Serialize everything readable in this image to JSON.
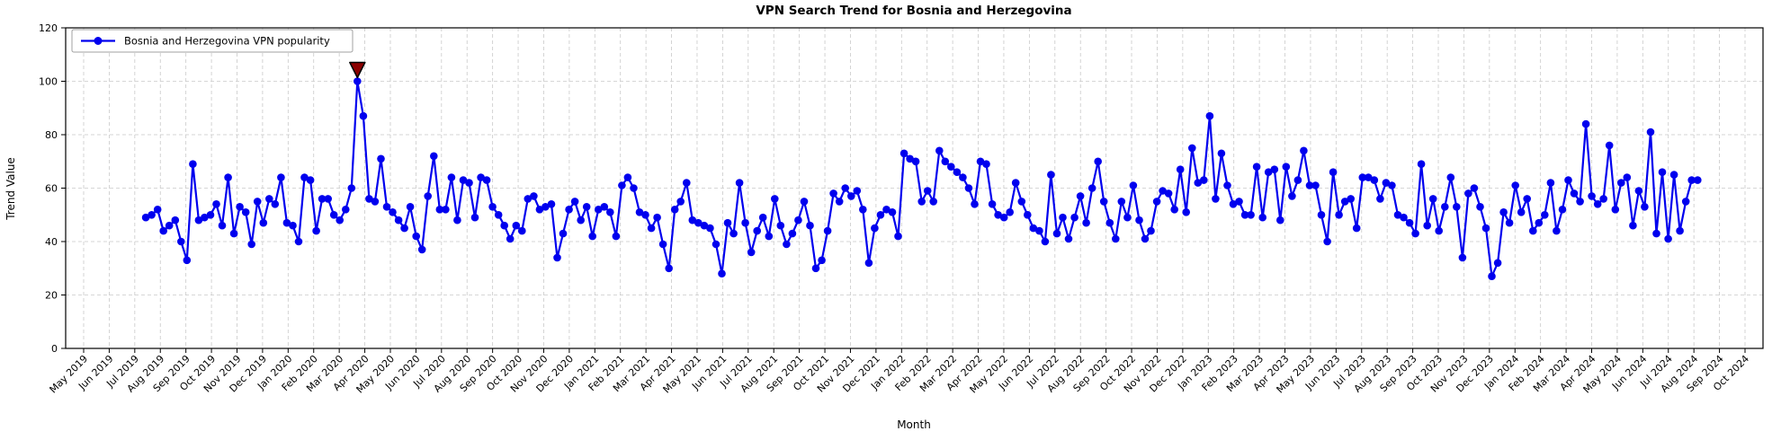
{
  "title": "VPN Search Trend for Bosnia and Herzegovina",
  "xlabel": "Month",
  "ylabel": "Trend Value",
  "legend": {
    "label": "Bosnia and Herzegovina VPN popularity"
  },
  "chart_data": {
    "type": "line",
    "title": "VPN Search Trend for Bosnia and Herzegovina",
    "xlabel": "Month",
    "ylabel": "Trend Value",
    "ylim": [
      0,
      120
    ],
    "yticks": [
      0,
      20,
      40,
      60,
      80,
      100,
      120
    ],
    "grid": "dashed both axes",
    "legend_position": "upper left",
    "x_tick_labels": [
      "May 2019",
      "Jun 2019",
      "Jul 2019",
      "Aug 2019",
      "Sep 2019",
      "Oct 2019",
      "Nov 2019",
      "Dec 2019",
      "Jan 2020",
      "Feb 2020",
      "Mar 2020",
      "Apr 2020",
      "May 2020",
      "Jun 2020",
      "Jul 2020",
      "Aug 2020",
      "Sep 2020",
      "Oct 2020",
      "Nov 2020",
      "Dec 2020",
      "Jan 2021",
      "Feb 2021",
      "Mar 2021",
      "Apr 2021",
      "May 2021",
      "Jun 2021",
      "Jul 2021",
      "Aug 2021",
      "Sep 2021",
      "Oct 2021",
      "Nov 2021",
      "Dec 2021",
      "Jan 2022",
      "Feb 2022",
      "Mar 2022",
      "Apr 2022",
      "May 2022",
      "Jun 2022",
      "Jul 2022",
      "Aug 2022",
      "Sep 2022",
      "Oct 2022",
      "Nov 2022",
      "Dec 2022",
      "Jan 2023",
      "Feb 2023",
      "Mar 2023",
      "Apr 2023",
      "May 2023",
      "Jun 2023",
      "Jul 2023",
      "Aug 2023",
      "Sep 2023",
      "Oct 2023",
      "Nov 2023",
      "Dec 2023",
      "Jan 2024",
      "Feb 2024",
      "Mar 2024",
      "Apr 2024",
      "May 2024",
      "Jun 2024",
      "Jul 2024",
      "Aug 2024",
      "Sep 2024",
      "Oct 2024"
    ],
    "series": [
      {
        "name": "Bosnia and Herzegovina VPN popularity",
        "color": "#0000ee",
        "marker": "circle",
        "start_date": "2019-07-14",
        "interval": "weekly",
        "values": [
          49,
          50,
          52,
          44,
          46,
          48,
          40,
          33,
          69,
          48,
          49,
          50,
          54,
          46,
          64,
          43,
          53,
          51,
          39,
          55,
          47,
          56,
          54,
          64,
          47,
          46,
          40,
          64,
          63,
          44,
          56,
          56,
          50,
          48,
          52,
          60,
          100,
          87,
          56,
          55,
          71,
          53,
          51,
          48,
          45,
          53,
          42,
          37,
          57,
          72,
          52,
          52,
          64,
          48,
          63,
          62,
          49,
          64,
          63,
          53,
          50,
          46,
          41,
          46,
          44,
          56,
          57,
          52,
          53,
          54,
          34,
          43,
          52,
          55,
          48,
          53,
          42,
          52,
          53,
          51,
          42,
          61,
          64,
          60,
          51,
          50,
          45,
          49,
          39,
          30,
          52,
          55,
          62,
          48,
          47,
          46,
          45,
          39,
          28,
          47,
          43,
          62,
          47,
          36,
          44,
          49,
          42,
          56,
          46,
          39,
          43,
          48,
          55,
          46,
          30,
          33,
          44,
          58,
          55,
          60,
          57,
          59,
          52,
          32,
          45,
          50,
          52,
          51,
          42,
          73,
          71,
          70,
          55,
          59,
          55,
          74,
          70,
          68,
          66,
          64,
          60,
          54,
          70,
          69,
          54,
          50,
          49,
          51,
          62,
          55,
          50,
          45,
          44,
          40,
          65,
          43,
          49,
          41,
          49,
          57,
          47,
          60,
          70,
          55,
          47,
          41,
          55,
          49,
          61,
          48,
          41,
          44,
          55,
          59,
          58,
          52,
          67,
          51,
          75,
          62,
          63,
          87,
          56,
          73,
          61,
          54,
          55,
          50,
          50,
          68,
          49,
          66,
          67,
          48,
          68,
          57,
          63,
          74,
          61,
          61,
          50,
          40,
          66,
          50,
          55,
          56,
          45,
          64,
          64,
          63,
          56,
          62,
          61,
          50,
          49,
          47,
          43,
          69,
          46,
          56,
          44,
          53,
          64,
          53,
          34,
          58,
          60,
          53,
          45,
          27,
          32,
          51,
          47,
          61,
          51,
          56,
          44,
          47,
          50,
          62,
          44,
          52,
          63,
          58,
          55,
          84,
          57,
          54,
          56,
          76,
          52,
          62,
          64,
          46,
          59,
          53,
          81,
          43,
          66,
          41,
          65,
          44,
          55,
          63,
          63
        ]
      }
    ],
    "annotation": {
      "type": "triangle-down-marker",
      "color": "#8b0000",
      "edge_color": "#000000",
      "date": "2020-03-22",
      "value": 100,
      "point_index": 36
    },
    "colors": {
      "line": "#0000ee",
      "grid": "#c9c9c9",
      "spine": "#000000",
      "background": "#ffffff",
      "annotation": "#8b0000"
    }
  }
}
